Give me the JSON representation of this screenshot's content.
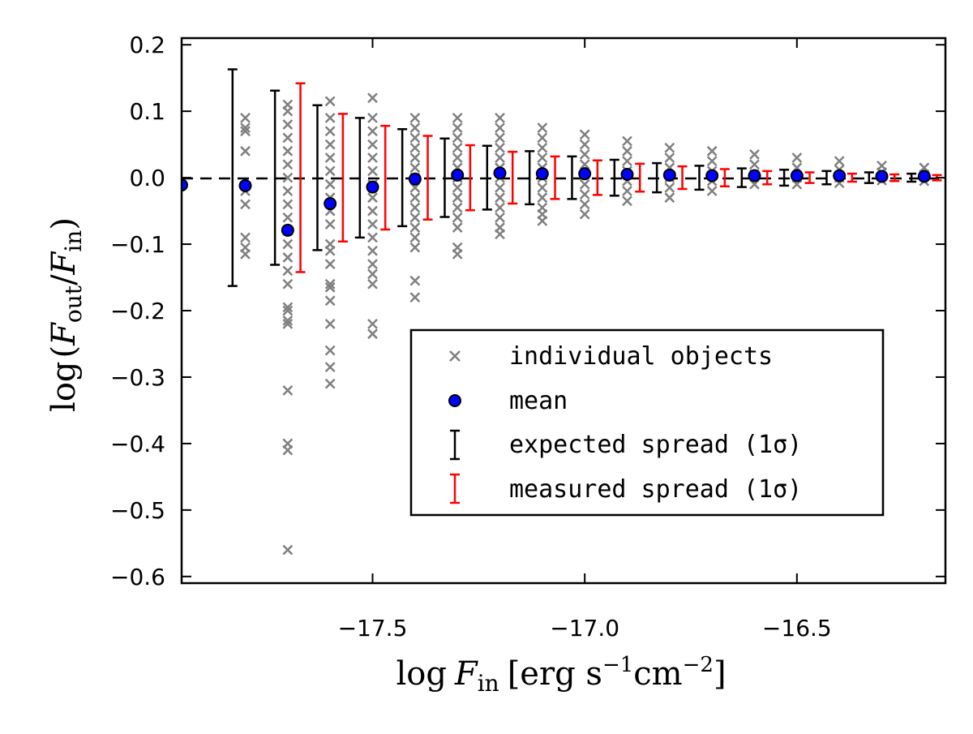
{
  "chart_data": {
    "type": "scatter",
    "xlabel_parts": {
      "func": "log",
      "var": "F",
      "sub": "in",
      "unit_open": "[erg s",
      "sup1": "−1",
      "unit_mid": "cm",
      "sup2": "−2",
      "unit_close": "]"
    },
    "ylabel_parts": {
      "func": "log",
      "open": "(",
      "var1": "F",
      "sub1": "out",
      "slash": "/",
      "var2": "F",
      "sub2": "in",
      "close": ")"
    },
    "xlim": [
      -17.95,
      -16.15
    ],
    "ylim": [
      -0.61,
      0.21
    ],
    "xticks": [
      -17.5,
      -17.0,
      -16.5
    ],
    "xtick_labels": [
      "−17.5",
      "−17.0",
      "−16.5"
    ],
    "yticks": [
      0.2,
      0.1,
      0.0,
      -0.1,
      -0.2,
      -0.3,
      -0.4,
      -0.5,
      -0.6
    ],
    "ytick_labels": [
      "0.2",
      "0.1",
      "0.0",
      "−0.1",
      "−0.2",
      "−0.3",
      "−0.4",
      "−0.5",
      "−0.6"
    ],
    "reference_line": 0.0,
    "legend": {
      "position": "lower-right",
      "entries": [
        {
          "label": "individual objects",
          "kind": "x-marker",
          "color": "#808080"
        },
        {
          "label": "mean",
          "kind": "circle",
          "color": "#0000ff"
        },
        {
          "label": "expected spread (1σ)",
          "kind": "errorbar",
          "color": "#000000"
        },
        {
          "label": "measured spread (1σ)",
          "kind": "errorbar",
          "color": "#ff0000"
        }
      ]
    },
    "series": [
      {
        "name": "individual objects",
        "color": "#808080",
        "points": [
          [
            -17.8,
            0.09
          ],
          [
            -17.8,
            0.075
          ],
          [
            -17.8,
            0.07
          ],
          [
            -17.8,
            0.04
          ],
          [
            -17.8,
            -0.02
          ],
          [
            -17.8,
            -0.04
          ],
          [
            -17.8,
            -0.09
          ],
          [
            -17.8,
            -0.105
          ],
          [
            -17.8,
            -0.115
          ],
          [
            -17.7,
            0.11
          ],
          [
            -17.7,
            0.1
          ],
          [
            -17.7,
            0.08
          ],
          [
            -17.7,
            0.06
          ],
          [
            -17.7,
            0.04
          ],
          [
            -17.7,
            0.02
          ],
          [
            -17.7,
            0.0
          ],
          [
            -17.7,
            -0.02
          ],
          [
            -17.7,
            -0.04
          ],
          [
            -17.7,
            -0.06
          ],
          [
            -17.7,
            -0.08
          ],
          [
            -17.7,
            -0.1
          ],
          [
            -17.7,
            -0.12
          ],
          [
            -17.7,
            -0.14
          ],
          [
            -17.7,
            -0.16
          ],
          [
            -17.7,
            -0.195
          ],
          [
            -17.7,
            -0.2
          ],
          [
            -17.7,
            -0.215
          ],
          [
            -17.7,
            -0.22
          ],
          [
            -17.7,
            -0.32
          ],
          [
            -17.7,
            -0.4
          ],
          [
            -17.7,
            -0.41
          ],
          [
            -17.7,
            -0.56
          ],
          [
            -17.6,
            0.115
          ],
          [
            -17.6,
            0.09
          ],
          [
            -17.6,
            0.07
          ],
          [
            -17.6,
            0.05
          ],
          [
            -17.6,
            0.03
          ],
          [
            -17.6,
            0.01
          ],
          [
            -17.6,
            -0.01
          ],
          [
            -17.6,
            -0.03
          ],
          [
            -17.6,
            -0.05
          ],
          [
            -17.6,
            -0.07
          ],
          [
            -17.6,
            -0.1
          ],
          [
            -17.6,
            -0.11
          ],
          [
            -17.6,
            -0.13
          ],
          [
            -17.6,
            -0.16
          ],
          [
            -17.6,
            -0.165
          ],
          [
            -17.6,
            -0.185
          ],
          [
            -17.6,
            -0.22
          ],
          [
            -17.6,
            -0.26
          ],
          [
            -17.6,
            -0.285
          ],
          [
            -17.6,
            -0.31
          ],
          [
            -17.5,
            0.12
          ],
          [
            -17.5,
            0.09
          ],
          [
            -17.5,
            0.07
          ],
          [
            -17.5,
            0.05
          ],
          [
            -17.5,
            0.03
          ],
          [
            -17.5,
            0.01
          ],
          [
            -17.5,
            -0.01
          ],
          [
            -17.5,
            -0.03
          ],
          [
            -17.5,
            -0.05
          ],
          [
            -17.5,
            -0.07
          ],
          [
            -17.5,
            -0.09
          ],
          [
            -17.5,
            -0.11
          ],
          [
            -17.5,
            -0.13
          ],
          [
            -17.5,
            -0.145
          ],
          [
            -17.5,
            -0.16
          ],
          [
            -17.5,
            -0.22
          ],
          [
            -17.5,
            -0.235
          ],
          [
            -17.4,
            0.09
          ],
          [
            -17.4,
            0.075
          ],
          [
            -17.4,
            0.06
          ],
          [
            -17.4,
            0.045
          ],
          [
            -17.4,
            0.03
          ],
          [
            -17.4,
            0.015
          ],
          [
            -17.4,
            0.0
          ],
          [
            -17.4,
            -0.015
          ],
          [
            -17.4,
            -0.03
          ],
          [
            -17.4,
            -0.045
          ],
          [
            -17.4,
            -0.06
          ],
          [
            -17.4,
            -0.075
          ],
          [
            -17.4,
            -0.09
          ],
          [
            -17.4,
            -0.105
          ],
          [
            -17.4,
            -0.155
          ],
          [
            -17.4,
            -0.18
          ],
          [
            -17.3,
            0.09
          ],
          [
            -17.3,
            0.075
          ],
          [
            -17.3,
            0.06
          ],
          [
            -17.3,
            0.045
          ],
          [
            -17.3,
            0.03
          ],
          [
            -17.3,
            0.015
          ],
          [
            -17.3,
            0.0
          ],
          [
            -17.3,
            -0.015
          ],
          [
            -17.3,
            -0.03
          ],
          [
            -17.3,
            -0.045
          ],
          [
            -17.3,
            -0.06
          ],
          [
            -17.3,
            -0.075
          ],
          [
            -17.3,
            -0.105
          ],
          [
            -17.3,
            -0.115
          ],
          [
            -17.2,
            0.09
          ],
          [
            -17.2,
            0.075
          ],
          [
            -17.2,
            0.06
          ],
          [
            -17.2,
            0.045
          ],
          [
            -17.2,
            0.03
          ],
          [
            -17.2,
            0.015
          ],
          [
            -17.2,
            0.0
          ],
          [
            -17.2,
            -0.015
          ],
          [
            -17.2,
            -0.03
          ],
          [
            -17.2,
            -0.045
          ],
          [
            -17.2,
            -0.06
          ],
          [
            -17.2,
            -0.075
          ],
          [
            -17.2,
            -0.085
          ],
          [
            -17.1,
            0.075
          ],
          [
            -17.1,
            0.06
          ],
          [
            -17.1,
            0.045
          ],
          [
            -17.1,
            0.03
          ],
          [
            -17.1,
            0.015
          ],
          [
            -17.1,
            0.0
          ],
          [
            -17.1,
            -0.015
          ],
          [
            -17.1,
            -0.03
          ],
          [
            -17.1,
            -0.045
          ],
          [
            -17.1,
            -0.055
          ],
          [
            -17.1,
            -0.065
          ],
          [
            -17.0,
            0.065
          ],
          [
            -17.0,
            0.05
          ],
          [
            -17.0,
            0.035
          ],
          [
            -17.0,
            0.02
          ],
          [
            -17.0,
            0.005
          ],
          [
            -17.0,
            -0.01
          ],
          [
            -17.0,
            -0.025
          ],
          [
            -17.0,
            -0.04
          ],
          [
            -17.0,
            -0.055
          ],
          [
            -16.9,
            0.055
          ],
          [
            -16.9,
            0.04
          ],
          [
            -16.9,
            0.025
          ],
          [
            -16.9,
            0.01
          ],
          [
            -16.9,
            -0.005
          ],
          [
            -16.9,
            -0.02
          ],
          [
            -16.9,
            -0.035
          ],
          [
            -16.8,
            0.045
          ],
          [
            -16.8,
            0.03
          ],
          [
            -16.8,
            0.015
          ],
          [
            -16.8,
            0.0
          ],
          [
            -16.8,
            -0.015
          ],
          [
            -16.8,
            -0.03
          ],
          [
            -16.7,
            0.04
          ],
          [
            -16.7,
            0.025
          ],
          [
            -16.7,
            0.01
          ],
          [
            -16.7,
            -0.005
          ],
          [
            -16.7,
            -0.02
          ],
          [
            -16.6,
            0.035
          ],
          [
            -16.6,
            0.02
          ],
          [
            -16.6,
            0.005
          ],
          [
            -16.6,
            -0.01
          ],
          [
            -16.5,
            0.03
          ],
          [
            -16.5,
            0.015
          ],
          [
            -16.5,
            0.0
          ],
          [
            -16.5,
            -0.01
          ],
          [
            -16.4,
            0.025
          ],
          [
            -16.4,
            0.012
          ],
          [
            -16.4,
            0.0
          ],
          [
            -16.4,
            -0.008
          ],
          [
            -16.3,
            0.018
          ],
          [
            -16.3,
            0.008
          ],
          [
            -16.3,
            -0.004
          ],
          [
            -16.2,
            0.015
          ],
          [
            -16.2,
            0.005
          ],
          [
            -16.2,
            -0.005
          ]
        ]
      },
      {
        "name": "mean",
        "color": "#0000ff",
        "x": [
          -17.95,
          -17.8,
          -17.7,
          -17.6,
          -17.5,
          -17.4,
          -17.3,
          -17.2,
          -17.1,
          -17.0,
          -16.9,
          -16.8,
          -16.7,
          -16.6,
          -16.5,
          -16.4,
          -16.3,
          -16.2
        ],
        "y": [
          -0.011,
          -0.012,
          -0.079,
          -0.039,
          -0.014,
          -0.002,
          0.004,
          0.007,
          0.006,
          0.006,
          0.005,
          0.004,
          0.003,
          0.003,
          0.003,
          0.003,
          0.002,
          0.002
        ]
      },
      {
        "name": "expected spread (1σ)",
        "color": "#000000",
        "x": [
          -17.83,
          -17.73,
          -17.63,
          -17.53,
          -17.43,
          -17.33,
          -17.23,
          -17.13,
          -17.03,
          -16.93,
          -16.83,
          -16.73,
          -16.63,
          -16.53,
          -16.43,
          -16.33,
          -16.23
        ],
        "sigma": [
          0.163,
          0.131,
          0.109,
          0.09,
          0.073,
          0.059,
          0.048,
          0.04,
          0.032,
          0.027,
          0.022,
          0.018,
          0.014,
          0.012,
          0.01,
          0.008,
          0.006
        ]
      },
      {
        "name": "measured spread (1σ)",
        "color": "#ff0000",
        "x": [
          -17.67,
          -17.57,
          -17.47,
          -17.37,
          -17.27,
          -17.17,
          -17.07,
          -16.97,
          -16.87,
          -16.77,
          -16.67,
          -16.57,
          -16.47,
          -16.37,
          -16.27,
          -16.17
        ],
        "sigma": [
          0.142,
          0.096,
          0.078,
          0.063,
          0.049,
          0.039,
          0.032,
          0.026,
          0.021,
          0.017,
          0.013,
          0.01,
          0.008,
          0.006,
          0.005,
          0.004
        ]
      }
    ]
  }
}
